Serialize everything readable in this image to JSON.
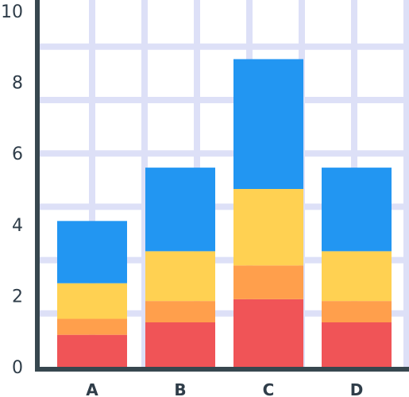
{
  "chart_data": {
    "type": "bar",
    "stacked": true,
    "categories": [
      "A",
      "B",
      "C",
      "D"
    ],
    "series": [
      {
        "color": "#f05457",
        "values": [
          0.9,
          1.25,
          1.9,
          1.25
        ]
      },
      {
        "color": "#ff9f4c",
        "values": [
          0.45,
          0.6,
          0.95,
          0.6
        ]
      },
      {
        "color": "#ffd152",
        "values": [
          1.0,
          1.4,
          2.15,
          1.4
        ]
      },
      {
        "color": "#2296f2",
        "values": [
          1.75,
          2.35,
          3.65,
          2.35
        ]
      }
    ],
    "ylim": [
      0,
      10
    ],
    "y_ticks": [
      "0",
      "2",
      "4",
      "6",
      "8",
      "10"
    ],
    "grid": true,
    "colors": {
      "axis": "#37474f",
      "grid": "#dde0f7",
      "background": "#ffffff",
      "text": "#2f3d49"
    }
  }
}
